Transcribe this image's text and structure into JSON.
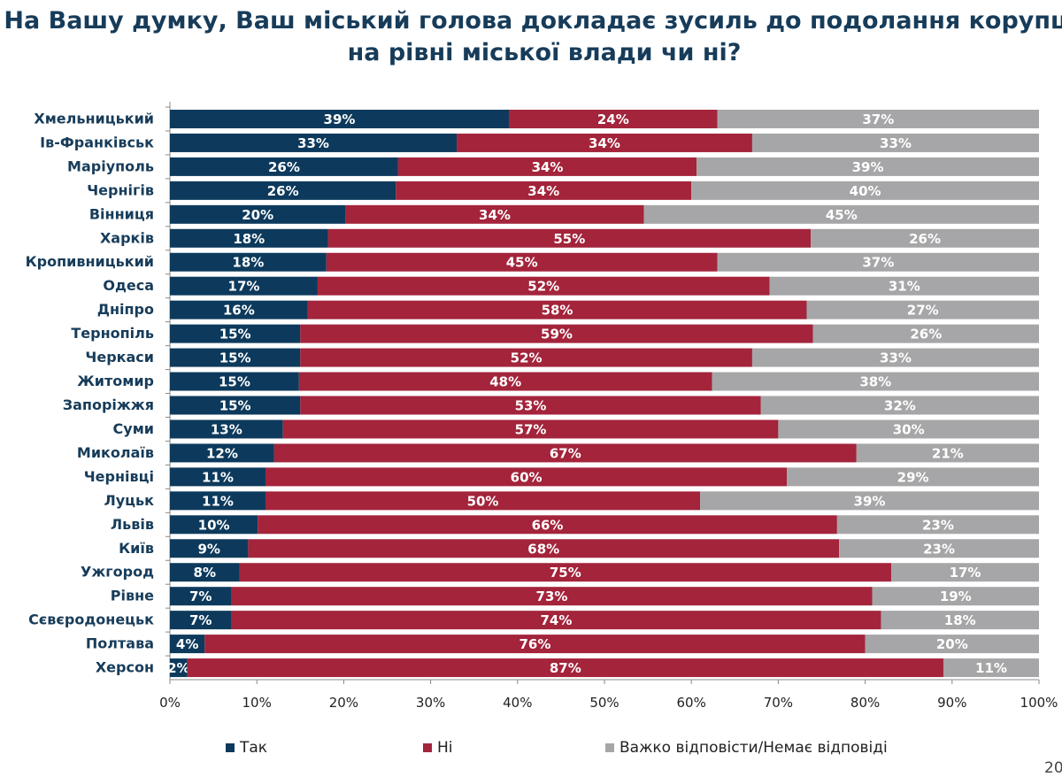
{
  "title": "На Вашу думку, Ваш міський голова докладає зусиль до подолання корупції на рівні міської влади чи ні?",
  "page_number": "20",
  "chart_data": {
    "type": "bar",
    "orientation": "horizontal",
    "stacked": "percent",
    "title": "На Вашу думку, Ваш міський голова докладає зусиль до подолання корупції на рівні міської влади чи ні?",
    "xlim": [
      0,
      100
    ],
    "x_ticks": [
      "0%",
      "10%",
      "20%",
      "30%",
      "40%",
      "50%",
      "60%",
      "70%",
      "80%",
      "90%",
      "100%"
    ],
    "grid": false,
    "legend_position": "bottom",
    "categories": [
      "Хмельницький",
      "Ів-Франківськ",
      "Маріуполь",
      "Чернігів",
      "Вінниця",
      "Харків",
      "Кропивницький",
      "Одеса",
      "Дніпро",
      "Тернопіль",
      "Черкаси",
      "Житомир",
      "Запоріжжя",
      "Суми",
      "Миколаїв",
      "Чернівці",
      "Луцьк",
      "Львів",
      "Київ",
      "Ужгород",
      "Рівне",
      "Сєвєродонецьк",
      "Полтава",
      "Херсон"
    ],
    "series": [
      {
        "name": "Так",
        "color": "#0d3a5c",
        "values": [
          39,
          33,
          26,
          26,
          20,
          18,
          18,
          17,
          16,
          15,
          15,
          15,
          15,
          13,
          12,
          11,
          11,
          10,
          9,
          8,
          7,
          7,
          4,
          2
        ]
      },
      {
        "name": "Ні",
        "color": "#a3243b",
        "values": [
          24,
          34,
          34,
          34,
          34,
          55,
          45,
          52,
          58,
          59,
          52,
          48,
          53,
          57,
          67,
          60,
          50,
          66,
          68,
          75,
          73,
          74,
          76,
          87
        ]
      },
      {
        "name": "Важко відповісти/Немає відповіді",
        "color": "#a6a6a8",
        "values": [
          37,
          33,
          39,
          40,
          45,
          26,
          37,
          31,
          27,
          26,
          33,
          38,
          32,
          30,
          21,
          29,
          39,
          23,
          23,
          17,
          19,
          18,
          20,
          11
        ]
      }
    ]
  }
}
